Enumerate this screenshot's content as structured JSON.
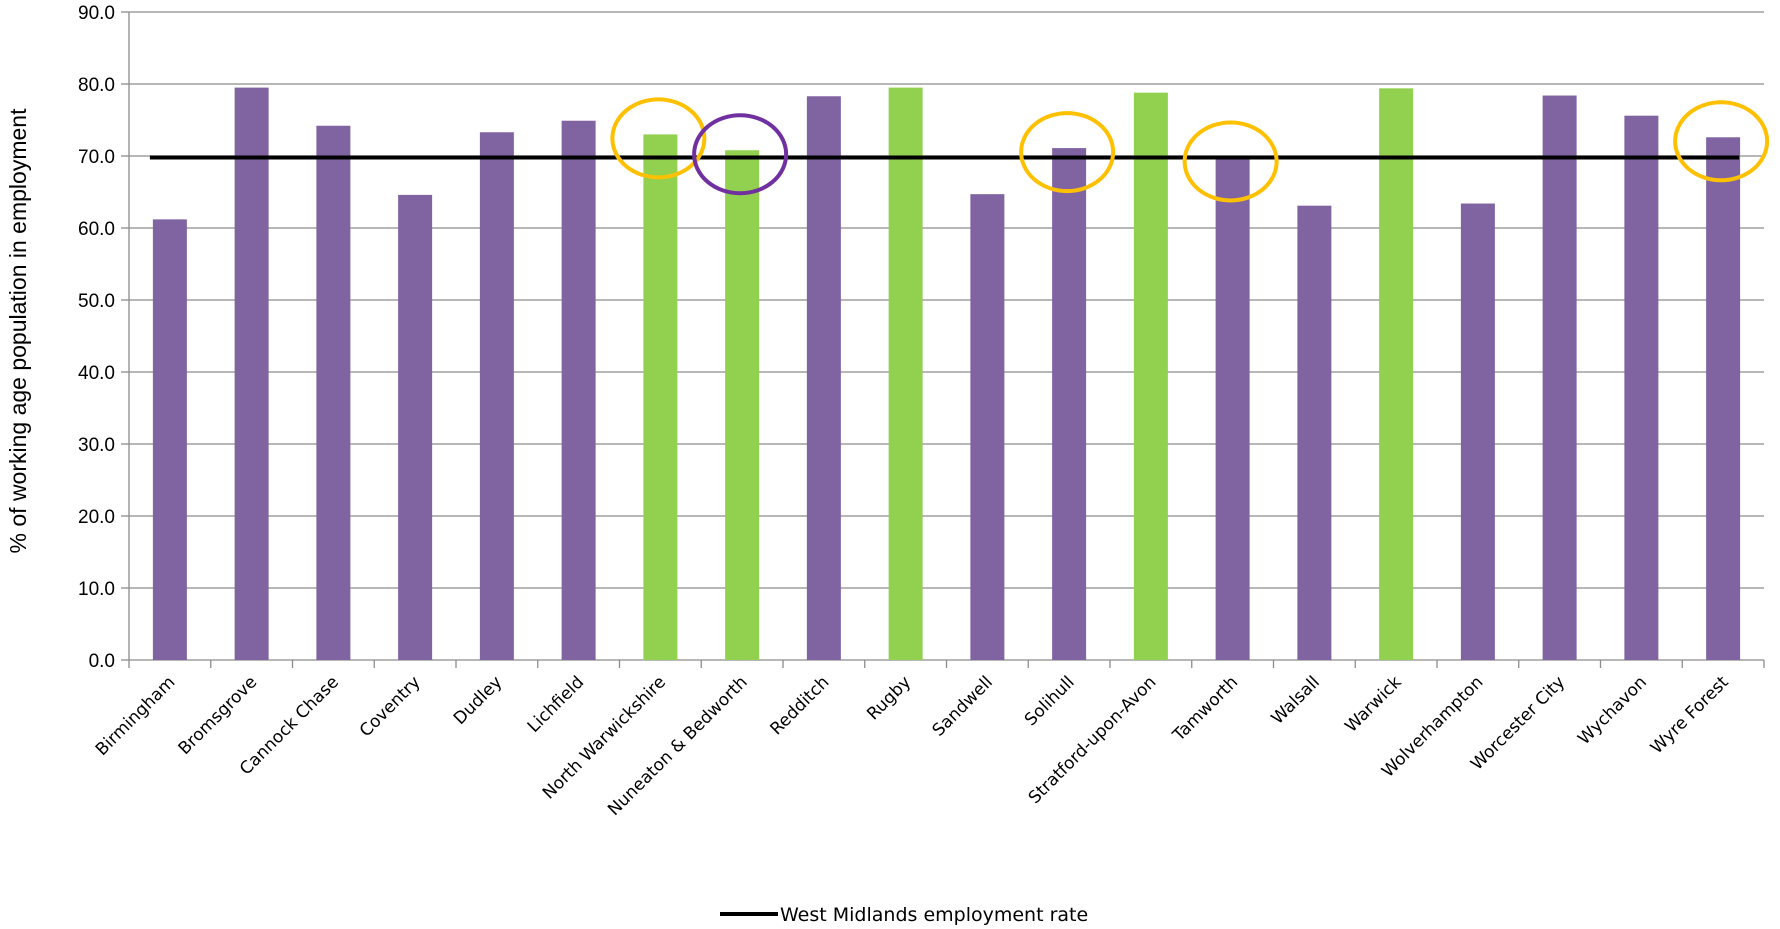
{
  "chart_data": {
    "type": "bar",
    "title": "",
    "xlabel": "",
    "ylabel": "% of working age population in employment",
    "ylim": [
      0,
      90
    ],
    "yticks": [
      "0.0",
      "10.0",
      "20.0",
      "30.0",
      "40.0",
      "50.0",
      "60.0",
      "70.0",
      "80.0",
      "90.0"
    ],
    "grid": true,
    "categories": [
      "Birmingham",
      "Bromsgrove",
      "Cannock Chase",
      "Coventry",
      "Dudley",
      "Lichfield",
      "North Warwickshire",
      "Nuneaton & Bedworth",
      "Redditch",
      "Rugby",
      "Sandwell",
      "Solihull",
      "Stratford-upon-Avon",
      "Tamworth",
      "Walsall",
      "Warwick",
      "Wolverhampton",
      "Worcester City",
      "Wychavon",
      "Wyre Forest"
    ],
    "values": [
      61.2,
      79.5,
      74.2,
      64.6,
      73.3,
      74.9,
      73.0,
      70.8,
      78.3,
      79.5,
      64.7,
      71.1,
      78.8,
      69.8,
      63.1,
      79.4,
      63.4,
      78.4,
      75.6,
      72.6
    ],
    "bar_colors": [
      "#8064a2",
      "#8064a2",
      "#8064a2",
      "#8064a2",
      "#8064a2",
      "#8064a2",
      "#92d050",
      "#92d050",
      "#8064a2",
      "#92d050",
      "#8064a2",
      "#8064a2",
      "#92d050",
      "#8064a2",
      "#8064a2",
      "#92d050",
      "#8064a2",
      "#8064a2",
      "#8064a2",
      "#8064a2"
    ],
    "reference_line": {
      "name": "West Midlands employment rate",
      "value": 69.8,
      "color": "#000000"
    },
    "highlight_circles": [
      {
        "category": "North Warwickshire",
        "color": "#ffc000"
      },
      {
        "category": "Nuneaton & Bedworth",
        "color": "#7030a0"
      },
      {
        "category": "Solihull",
        "color": "#ffc000"
      },
      {
        "category": "Tamworth",
        "color": "#ffc000"
      },
      {
        "category": "Wyre Forest",
        "color": "#ffc000"
      }
    ],
    "legend": {
      "position": "bottom",
      "entries": [
        "West Midlands employment rate"
      ]
    }
  }
}
